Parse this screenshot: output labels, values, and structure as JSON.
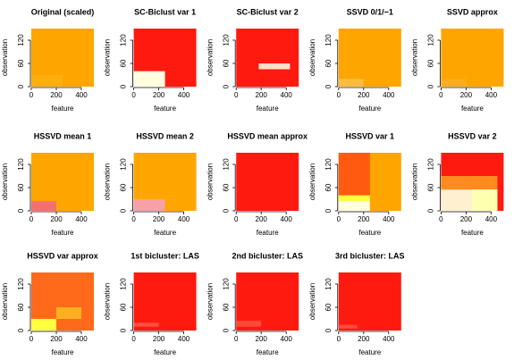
{
  "chart_data": [
    {
      "type": "heatmap",
      "title": "Original (scaled)",
      "xlabel": "feature",
      "ylabel": "observation",
      "xlim": [
        0,
        500
      ],
      "ylim": [
        0,
        150
      ],
      "xticks": [
        0,
        200,
        400
      ],
      "yticks": [
        0,
        60,
        120
      ],
      "color": "#FFA500",
      "blocks": [
        {
          "x": [
            0,
            250
          ],
          "y": [
            0,
            30
          ],
          "color": "#FFAE10"
        }
      ]
    },
    {
      "type": "heatmap",
      "title": "SC-Biclust var 1",
      "xlabel": "feature",
      "ylabel": "observation",
      "xlim": [
        0,
        500
      ],
      "ylim": [
        0,
        150
      ],
      "xticks": [
        0,
        200,
        400
      ],
      "yticks": [
        0,
        60,
        120
      ],
      "color": "#FF1A10",
      "blocks": [
        {
          "x": [
            0,
            250
          ],
          "y": [
            0,
            40
          ],
          "color": "#FFFFE0"
        }
      ]
    },
    {
      "type": "heatmap",
      "title": "SC-Biclust var 2",
      "xlabel": "feature",
      "ylabel": "observation",
      "xlim": [
        0,
        500
      ],
      "ylim": [
        0,
        150
      ],
      "xticks": [
        0,
        200,
        400
      ],
      "yticks": [
        0,
        60,
        120
      ],
      "color": "#FF1A10",
      "blocks": [
        {
          "x": [
            180,
            430
          ],
          "y": [
            45,
            60
          ],
          "color": "#FFE0C8"
        }
      ]
    },
    {
      "type": "heatmap",
      "title": "SSVD 0/1/−1",
      "xlabel": "feature",
      "ylabel": "observation",
      "xlim": [
        0,
        500
      ],
      "ylim": [
        0,
        150
      ],
      "xticks": [
        0,
        200,
        400
      ],
      "yticks": [
        0,
        60,
        120
      ],
      "color": "#FFA500",
      "blocks": [
        {
          "x": [
            0,
            200
          ],
          "y": [
            0,
            20
          ],
          "color": "#FFBC40"
        }
      ]
    },
    {
      "type": "heatmap",
      "title": "SSVD approx",
      "xlabel": "feature",
      "ylabel": "observation",
      "xlim": [
        0,
        500
      ],
      "ylim": [
        0,
        150
      ],
      "xticks": [
        0,
        200,
        400
      ],
      "yticks": [
        0,
        60,
        120
      ],
      "color": "#FFA500",
      "blocks": [
        {
          "x": [
            0,
            200
          ],
          "y": [
            0,
            20
          ],
          "color": "#FFAC20"
        }
      ]
    },
    {
      "type": "heatmap",
      "title": "HSSVD mean 1",
      "xlabel": "feature",
      "ylabel": "observation",
      "xlim": [
        0,
        500
      ],
      "ylim": [
        0,
        150
      ],
      "xticks": [
        0,
        200,
        400
      ],
      "yticks": [
        0,
        60,
        120
      ],
      "color": "#FFA500",
      "blocks": [
        {
          "x": [
            0,
            200
          ],
          "y": [
            0,
            25
          ],
          "color": "#F47070"
        }
      ]
    },
    {
      "type": "heatmap",
      "title": "HSSVD mean 2",
      "xlabel": "feature",
      "ylabel": "observation",
      "xlim": [
        0,
        500
      ],
      "ylim": [
        0,
        150
      ],
      "xticks": [
        0,
        200,
        400
      ],
      "yticks": [
        0,
        60,
        120
      ],
      "color": "#FFA500",
      "blocks": [
        {
          "x": [
            0,
            250
          ],
          "y": [
            0,
            30
          ],
          "color": "#F8A0A8"
        }
      ]
    },
    {
      "type": "heatmap",
      "title": "HSSVD mean approx",
      "xlabel": "feature",
      "ylabel": "observation",
      "xlim": [
        0,
        500
      ],
      "ylim": [
        0,
        150
      ],
      "xticks": [
        0,
        200,
        400
      ],
      "yticks": [
        0,
        60,
        120
      ],
      "color": "#FF1A10",
      "blocks": []
    },
    {
      "type": "heatmap",
      "title": "HSSVD var 1",
      "xlabel": "feature",
      "ylabel": "observation",
      "xlim": [
        0,
        500
      ],
      "ylim": [
        0,
        150
      ],
      "xticks": [
        0,
        200,
        400
      ],
      "yticks": [
        0,
        60,
        120
      ],
      "color": "#FFA500",
      "blocks": [
        {
          "x": [
            0,
            250
          ],
          "y": [
            40,
            150
          ],
          "color": "#FF5A10"
        },
        {
          "x": [
            0,
            250
          ],
          "y": [
            25,
            40
          ],
          "color": "#FFFF40"
        },
        {
          "x": [
            0,
            250
          ],
          "y": [
            0,
            25
          ],
          "color": "#FFFFE0"
        }
      ]
    },
    {
      "type": "heatmap",
      "title": "HSSVD var 2",
      "xlabel": "feature",
      "ylabel": "observation",
      "xlim": [
        0,
        500
      ],
      "ylim": [
        0,
        150
      ],
      "xticks": [
        0,
        200,
        400
      ],
      "yticks": [
        0,
        60,
        120
      ],
      "color": "#FF1A10",
      "blocks": [
        {
          "x": [
            0,
            450
          ],
          "y": [
            55,
            90
          ],
          "color": "#FF8A20"
        },
        {
          "x": [
            0,
            450
          ],
          "y": [
            0,
            55
          ],
          "color": "#FFF0D0"
        },
        {
          "x": [
            250,
            450
          ],
          "y": [
            0,
            55
          ],
          "color": "#FFFFB0"
        }
      ]
    },
    {
      "type": "heatmap",
      "title": "HSSVD var approx",
      "xlabel": "feature",
      "ylabel": "observation",
      "xlim": [
        0,
        500
      ],
      "ylim": [
        0,
        150
      ],
      "xticks": [
        0,
        200,
        400
      ],
      "yticks": [
        0,
        60,
        120
      ],
      "color": "#FF6A1A",
      "blocks": [
        {
          "x": [
            0,
            200
          ],
          "y": [
            0,
            30
          ],
          "color": "#FFFF40"
        },
        {
          "x": [
            200,
            400
          ],
          "y": [
            30,
            60
          ],
          "color": "#FFB020"
        }
      ]
    },
    {
      "type": "heatmap",
      "title": "1st bicluster: LAS",
      "xlabel": "feature",
      "ylabel": "observation",
      "xlim": [
        0,
        500
      ],
      "ylim": [
        0,
        150
      ],
      "xticks": [
        0,
        200,
        400
      ],
      "yticks": [
        0,
        60,
        120
      ],
      "color": "#FF1A10",
      "blocks": [
        {
          "x": [
            0,
            200
          ],
          "y": [
            10,
            20
          ],
          "color": "#FF5040"
        }
      ]
    },
    {
      "type": "heatmap",
      "title": "2nd bicluster: LAS",
      "xlabel": "feature",
      "ylabel": "observation",
      "xlim": [
        0,
        500
      ],
      "ylim": [
        0,
        150
      ],
      "xticks": [
        0,
        200,
        400
      ],
      "yticks": [
        0,
        60,
        120
      ],
      "color": "#FF1A10",
      "blocks": [
        {
          "x": [
            0,
            200
          ],
          "y": [
            10,
            25
          ],
          "color": "#FF4A3A"
        }
      ]
    },
    {
      "type": "heatmap",
      "title": "3rd bicluster: LAS",
      "xlabel": "feature",
      "ylabel": "observation",
      "xlim": [
        0,
        500
      ],
      "ylim": [
        0,
        150
      ],
      "xticks": [
        0,
        200,
        400
      ],
      "yticks": [
        0,
        60,
        120
      ],
      "color": "#FF1A10",
      "blocks": [
        {
          "x": [
            0,
            150
          ],
          "y": [
            5,
            15
          ],
          "color": "#FF4A3A"
        }
      ]
    }
  ]
}
